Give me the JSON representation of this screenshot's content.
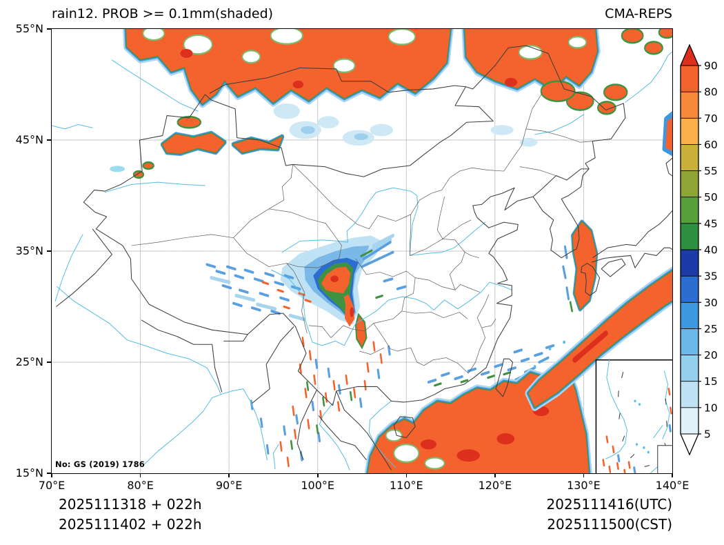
{
  "header": {
    "title": "rain12. PROB >= 0.1mm(shaded)",
    "source": "CMA-REPS"
  },
  "axes": {
    "x_ticks": [
      "70°E",
      "80°E",
      "90°E",
      "100°E",
      "110°E",
      "120°E",
      "130°E",
      "140°E"
    ],
    "y_ticks": [
      "55°N",
      "45°N",
      "35°N",
      "25°N",
      "15°N"
    ]
  },
  "map": {
    "license_note": "No: GS (2019) 1786"
  },
  "colorbar": {
    "tick_labels": [
      "90",
      "80",
      "70",
      "60",
      "55",
      "50",
      "45",
      "40",
      "35",
      "30",
      "25",
      "20",
      "15",
      "10",
      "5"
    ],
    "segment_colors_top_to_bottom": [
      "#dc2f1e",
      "#f4622d",
      "#f8883a",
      "#fbb14b",
      "#c9b03a",
      "#8fa53a",
      "#57a03c",
      "#2f8f40",
      "#1c3aa8",
      "#2b6ed0",
      "#3f97e0",
      "#6cb8e8",
      "#96cfee",
      "#bfe2f4",
      "#e2f1f9",
      "#ffffff"
    ]
  },
  "footer": {
    "left_line1": "2025111318 + 022h",
    "left_line2": "2025111402 + 022h",
    "right_line1": "2025111416(UTC)",
    "right_line2": "2025111500(CST)"
  },
  "chart_data": {
    "type": "heatmap",
    "title": "rain12. PROB >= 0.1mm(shaded)",
    "model": "CMA-REPS",
    "variable": "probability of 12h accumulated rainfall >= 0.1mm",
    "units": "%",
    "levels_percent": [
      5,
      10,
      15,
      20,
      25,
      30,
      35,
      40,
      45,
      50,
      55,
      60,
      70,
      80,
      90
    ],
    "level_colors_low_to_high": [
      "#ffffff",
      "#e2f1f9",
      "#bfe2f4",
      "#96cfee",
      "#6cb8e8",
      "#3f97e0",
      "#2b6ed0",
      "#1c3aa8",
      "#2f8f40",
      "#57a03c",
      "#8fa53a",
      "#c9b03a",
      "#fbb14b",
      "#f8883a",
      "#f4622d",
      "#dc2f1e"
    ],
    "lon_range_deg_e": [
      70,
      140
    ],
    "lat_range_deg_n": [
      15,
      55
    ],
    "x_tick_values_deg_e": [
      70,
      80,
      90,
      100,
      110,
      120,
      130,
      140
    ],
    "y_tick_values_deg_n": [
      55,
      45,
      35,
      25,
      15
    ],
    "grid": "dashed 10-degree graticule",
    "colorbar_position": "right",
    "init_time_lines": [
      "2025111318 + 022h",
      "2025111402 + 022h"
    ],
    "valid_time_lines": [
      "2025111416(UTC)",
      "2025111500(CST)"
    ],
    "high_probability_regions": [
      "broad band across 48-55N from ~78E to ~132E",
      "Tianshan range patches ~43-46N, 82-96E",
      "Sichuan / east Tibetan Plateau core ~30-34N, 100-105E with blue halo",
      "South China Sea and south coastal band south of ~23N from ~105E eastward",
      "diagonal band from ~(124E,21N) toward (140E,33N)",
      "Sea of Japan streak ~129-131E, 30-38N",
      "scattered showers speckle over Yunnan/Indochina and west of Sichuan core"
    ]
  }
}
